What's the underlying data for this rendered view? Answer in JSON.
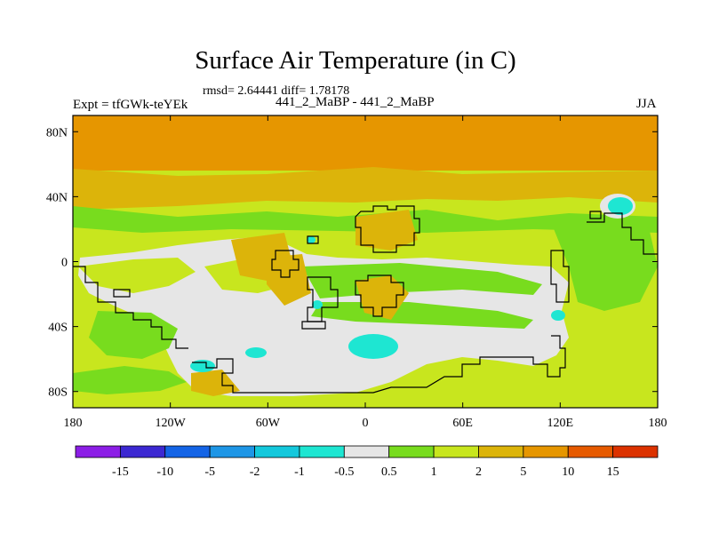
{
  "title": "Surface Air Temperature (in C)",
  "stats": "rmsd= 2.64441 diff= 1.78178",
  "experiment": "Expt = tfGWk-teYEk",
  "comparison": "441_2_MaBP - 441_2_MaBP",
  "season": "JJA",
  "axes": {
    "lon_ticks": [
      "180",
      "120W",
      "60W",
      "0",
      "60E",
      "120E",
      "180"
    ],
    "lon_values": [
      -180,
      -120,
      -60,
      0,
      60,
      120,
      180
    ],
    "lat_ticks": [
      "80N",
      "40N",
      "0",
      "40S",
      "80S"
    ],
    "lat_values": [
      80,
      40,
      0,
      -40,
      -80
    ],
    "lon_range": [
      -180,
      180
    ],
    "lat_range": [
      -90,
      90
    ]
  },
  "colorbar": {
    "labels": [
      "-15",
      "-10",
      "-5",
      "-2",
      "-1",
      "-0.5",
      "0.5",
      "1",
      "2",
      "5",
      "10",
      "15"
    ],
    "colors": [
      "#8c1ee6",
      "#3c28d2",
      "#1464e6",
      "#1e96e6",
      "#14c8dc",
      "#1ee6d2",
      "#e6e6e6",
      "#78dc1e",
      "#c8e61e",
      "#dcb40a",
      "#e69600",
      "#e65a00",
      "#dc3200"
    ]
  },
  "map_colors": {
    "neutral": "#e6e6e6",
    "warm1": "#78dc1e",
    "warm2": "#c8e61e",
    "warm3": "#dcb40a",
    "warm4": "#e69600",
    "cool": "#1ee6d2"
  }
}
